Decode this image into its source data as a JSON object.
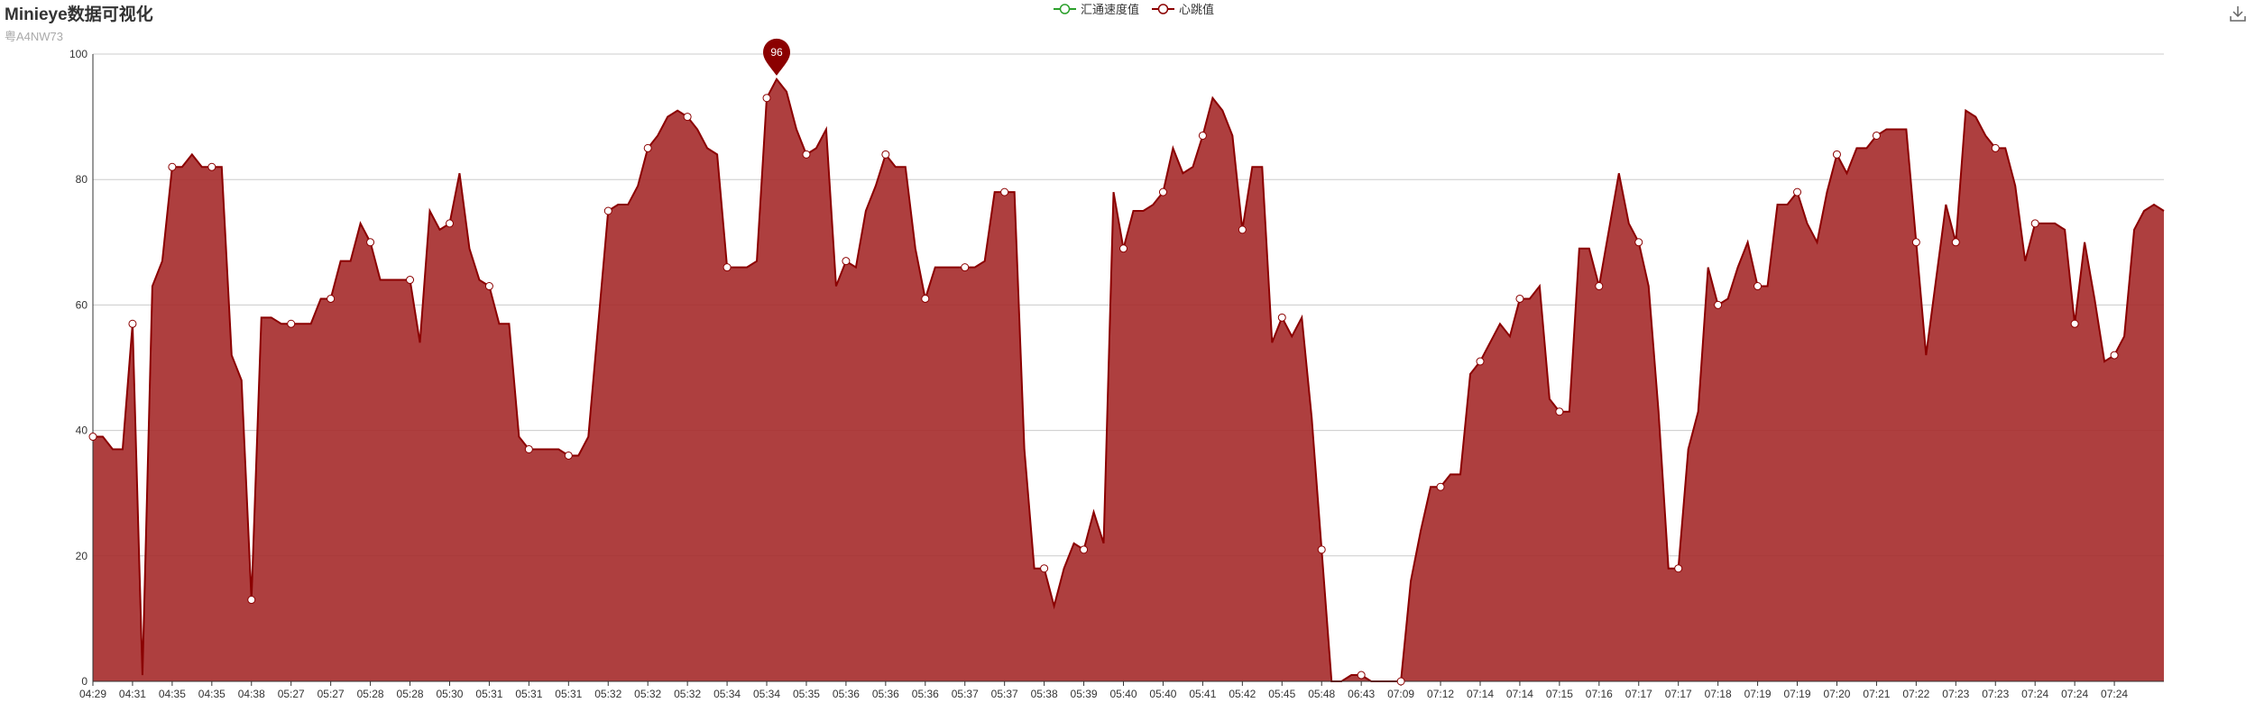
{
  "title": "Minieye数据可视化",
  "subtitle": "粤A4NW73",
  "legend": [
    {
      "name": "汇通速度值",
      "color": "#2ca02c"
    },
    {
      "name": "心跳值",
      "color": "#8b0000"
    }
  ],
  "toolbox": {
    "icon": "download-icon"
  },
  "chart_data": {
    "type": "area",
    "title": "Minieye数据可视化",
    "xlabel": "",
    "ylabel": "",
    "ylim": [
      0,
      100
    ],
    "yticks": [
      0,
      20,
      40,
      60,
      80,
      100
    ],
    "grid": true,
    "legend_position": "top-center",
    "x_tick_labels": [
      "04:29",
      "04:31",
      "04:35",
      "04:35",
      "04:38",
      "05:27",
      "05:27",
      "05:28",
      "05:28",
      "05:30",
      "05:31",
      "05:31",
      "05:31",
      "05:32",
      "05:32",
      "05:32",
      "05:34",
      "05:34",
      "05:35",
      "05:36",
      "05:36",
      "05:36",
      "05:37",
      "05:37",
      "05:38",
      "05:39",
      "05:40",
      "05:40",
      "05:41",
      "05:42",
      "05:45",
      "05:48",
      "06:43",
      "07:09",
      "07:12",
      "07:14",
      "07:14",
      "07:15",
      "07:16",
      "07:17",
      "07:17",
      "07:18",
      "07:19",
      "07:19",
      "07:20",
      "07:21",
      "07:22",
      "07:23",
      "07:23",
      "07:24",
      "07:24",
      "07:24"
    ],
    "series": [
      {
        "name": "心跳值",
        "color": "#8b0000",
        "fill": "#a52a2a",
        "values": [
          39,
          39,
          37,
          37,
          57,
          1,
          63,
          67,
          82,
          82,
          84,
          82,
          82,
          82,
          52,
          48,
          13,
          58,
          58,
          57,
          57,
          57,
          57,
          61,
          61,
          67,
          67,
          73,
          70,
          64,
          64,
          64,
          64,
          54,
          75,
          72,
          73,
          81,
          69,
          64,
          63,
          57,
          57,
          39,
          37,
          37,
          37,
          37,
          36,
          36,
          39,
          57,
          75,
          76,
          76,
          79,
          85,
          87,
          90,
          91,
          90,
          88,
          85,
          84,
          66,
          66,
          66,
          67,
          93,
          96,
          94,
          88,
          84,
          85,
          88,
          63,
          67,
          66,
          75,
          79,
          84,
          82,
          82,
          69,
          61,
          66,
          66,
          66,
          66,
          66,
          67,
          78,
          78,
          78,
          37,
          18,
          18,
          12,
          18,
          22,
          21,
          27,
          22,
          78,
          69,
          75,
          75,
          76,
          78,
          85,
          81,
          82,
          87,
          93,
          91,
          87,
          72,
          82,
          82,
          54,
          58,
          55,
          58,
          42,
          21,
          0,
          0,
          1,
          1,
          0,
          0,
          0,
          0,
          16,
          24,
          31,
          31,
          33,
          33,
          49,
          51,
          54,
          57,
          55,
          61,
          61,
          63,
          45,
          43,
          43,
          69,
          69,
          63,
          72,
          81,
          73,
          70,
          63,
          43,
          18,
          18,
          37,
          43,
          66,
          60,
          61,
          66,
          70,
          63,
          63,
          76,
          76,
          78,
          73,
          70,
          78,
          84,
          81,
          85,
          85,
          87,
          88,
          88,
          88,
          70,
          52,
          64,
          76,
          70,
          91,
          90,
          87,
          85,
          85,
          79,
          67,
          73,
          73,
          73,
          72,
          57,
          70,
          61,
          51,
          52,
          55,
          72,
          75,
          76,
          75
        ],
        "markers": [
          0,
          4,
          8,
          12,
          16,
          20,
          24,
          28,
          32,
          36,
          40,
          44,
          48,
          52,
          56,
          60,
          64,
          68,
          72,
          76,
          80,
          84,
          88,
          92,
          96,
          100,
          104,
          108,
          112,
          116,
          120,
          124,
          128,
          132,
          136,
          140,
          144,
          148,
          152,
          156,
          160,
          164,
          168,
          172,
          176,
          180,
          184,
          188,
          192,
          196,
          200,
          204
        ],
        "max_point": {
          "index": 69,
          "value": 96,
          "label": "96"
        }
      },
      {
        "name": "汇通速度值",
        "color": "#2ca02c",
        "values": []
      }
    ]
  }
}
